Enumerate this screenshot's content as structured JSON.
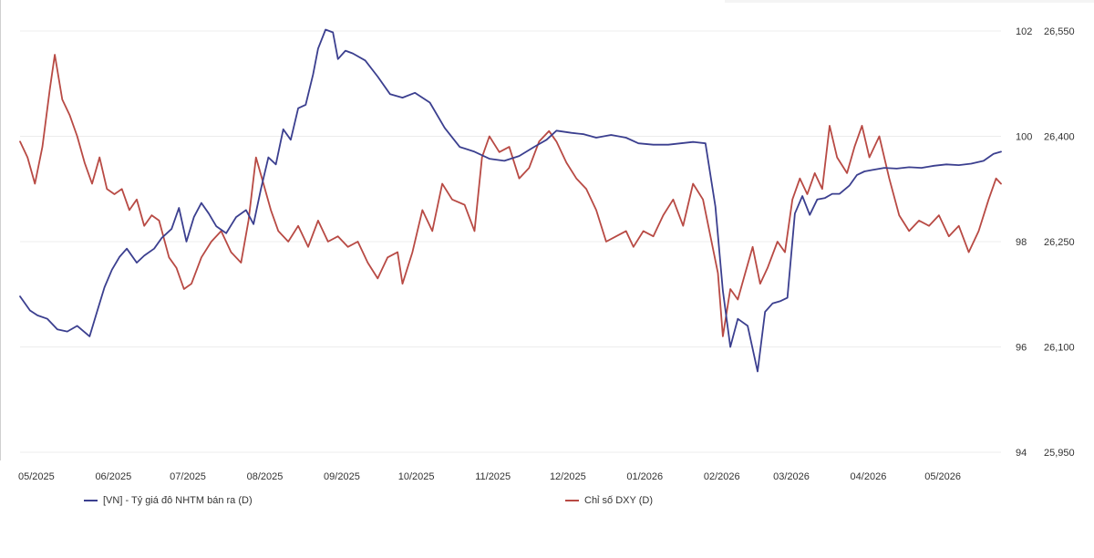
{
  "chart_data": {
    "type": "line",
    "x_labels": [
      "05/2025",
      "06/2025",
      "07/2025",
      "08/2025",
      "09/2025",
      "10/2025",
      "11/2025",
      "12/2025",
      "01/2026",
      "02/2026",
      "03/2026",
      "04/2026",
      "05/2026"
    ],
    "series": [
      {
        "name": "[VN] - Tỷ giá đô NHTM bán ra (D)",
        "axis": "right",
        "color": "#3b3f8f",
        "points": [
          [
            "2025-05-01",
            26172
          ],
          [
            "2025-05-05",
            26152
          ],
          [
            "2025-05-08",
            26145
          ],
          [
            "2025-05-12",
            26140
          ],
          [
            "2025-05-16",
            26125
          ],
          [
            "2025-05-20",
            26122
          ],
          [
            "2025-05-24",
            26130
          ],
          [
            "2025-05-29",
            26115
          ],
          [
            "2025-06-01",
            26150
          ],
          [
            "2025-06-04",
            26185
          ],
          [
            "2025-06-07",
            26210
          ],
          [
            "2025-06-10",
            26228
          ],
          [
            "2025-06-13",
            26240
          ],
          [
            "2025-06-17",
            26220
          ],
          [
            "2025-06-20",
            26230
          ],
          [
            "2025-06-24",
            26240
          ],
          [
            "2025-06-27",
            26255
          ],
          [
            "2025-07-01",
            26268
          ],
          [
            "2025-07-04",
            26298
          ],
          [
            "2025-07-07",
            26250
          ],
          [
            "2025-07-10",
            26285
          ],
          [
            "2025-07-13",
            26305
          ],
          [
            "2025-07-16",
            26290
          ],
          [
            "2025-07-19",
            26272
          ],
          [
            "2025-07-23",
            26262
          ],
          [
            "2025-07-27",
            26285
          ],
          [
            "2025-07-31",
            26295
          ],
          [
            "2025-08-03",
            26275
          ],
          [
            "2025-08-06",
            26325
          ],
          [
            "2025-08-09",
            26370
          ],
          [
            "2025-08-12",
            26360
          ],
          [
            "2025-08-15",
            26410
          ],
          [
            "2025-08-18",
            26395
          ],
          [
            "2025-08-21",
            26440
          ],
          [
            "2025-08-24",
            26445
          ],
          [
            "2025-08-27",
            26488
          ],
          [
            "2025-08-29",
            26525
          ],
          [
            "2025-09-01",
            26552
          ],
          [
            "2025-09-04",
            26548
          ],
          [
            "2025-09-06",
            26510
          ],
          [
            "2025-09-09",
            26522
          ],
          [
            "2025-09-12",
            26518
          ],
          [
            "2025-09-17",
            26508
          ],
          [
            "2025-09-22",
            26485
          ],
          [
            "2025-09-27",
            26460
          ],
          [
            "2025-10-02",
            26455
          ],
          [
            "2025-10-07",
            26462
          ],
          [
            "2025-10-13",
            26448
          ],
          [
            "2025-10-19",
            26412
          ],
          [
            "2025-10-25",
            26385
          ],
          [
            "2025-10-31",
            26378
          ],
          [
            "2025-11-06",
            26368
          ],
          [
            "2025-11-12",
            26365
          ],
          [
            "2025-11-18",
            26372
          ],
          [
            "2025-11-24",
            26385
          ],
          [
            "2025-11-29",
            26395
          ],
          [
            "2025-12-03",
            26408
          ],
          [
            "2025-12-09",
            26405
          ],
          [
            "2025-12-14",
            26403
          ],
          [
            "2025-12-19",
            26398
          ],
          [
            "2025-12-25",
            26402
          ],
          [
            "2025-12-31",
            26398
          ],
          [
            "2026-01-05",
            26390
          ],
          [
            "2026-01-11",
            26388
          ],
          [
            "2026-01-17",
            26388
          ],
          [
            "2026-01-22",
            26390
          ],
          [
            "2026-01-27",
            26392
          ],
          [
            "2026-02-01",
            26390
          ],
          [
            "2026-02-05",
            26300
          ],
          [
            "2026-02-08",
            26180
          ],
          [
            "2026-02-11",
            26100
          ],
          [
            "2026-02-14",
            26140
          ],
          [
            "2026-02-18",
            26130
          ],
          [
            "2026-02-22",
            26065
          ],
          [
            "2026-02-25",
            26150
          ],
          [
            "2026-02-28",
            26162
          ],
          [
            "2026-03-03",
            26165
          ],
          [
            "2026-03-06",
            26170
          ],
          [
            "2026-03-09",
            26290
          ],
          [
            "2026-03-12",
            26315
          ],
          [
            "2026-03-15",
            26288
          ],
          [
            "2026-03-18",
            26310
          ],
          [
            "2026-03-21",
            26312
          ],
          [
            "2026-03-24",
            26318
          ],
          [
            "2026-03-27",
            26318
          ],
          [
            "2026-03-31",
            26330
          ],
          [
            "2026-04-03",
            26345
          ],
          [
            "2026-04-06",
            26350
          ],
          [
            "2026-04-09",
            26352
          ],
          [
            "2026-04-14",
            26355
          ],
          [
            "2026-04-19",
            26354
          ],
          [
            "2026-04-24",
            26356
          ],
          [
            "2026-04-29",
            26355
          ],
          [
            "2026-05-04",
            26358
          ],
          [
            "2026-05-09",
            26360
          ],
          [
            "2026-05-14",
            26359
          ],
          [
            "2026-05-19",
            26361
          ],
          [
            "2026-05-24",
            26365
          ],
          [
            "2026-05-28",
            26375
          ],
          [
            "2026-05-31",
            26378
          ]
        ]
      },
      {
        "name": "Chỉ số DXY (D)",
        "axis": "left",
        "color": "#b84a44",
        "points": [
          [
            "2025-05-01",
            99.9
          ],
          [
            "2025-05-04",
            99.6
          ],
          [
            "2025-05-07",
            99.1
          ],
          [
            "2025-05-10",
            99.8
          ],
          [
            "2025-05-13",
            100.9
          ],
          [
            "2025-05-15",
            101.55
          ],
          [
            "2025-05-18",
            100.7
          ],
          [
            "2025-05-21",
            100.4
          ],
          [
            "2025-05-24",
            100.0
          ],
          [
            "2025-05-27",
            99.5
          ],
          [
            "2025-05-30",
            99.1
          ],
          [
            "2025-06-02",
            99.6
          ],
          [
            "2025-06-05",
            99.0
          ],
          [
            "2025-06-08",
            98.9
          ],
          [
            "2025-06-11",
            99.0
          ],
          [
            "2025-06-14",
            98.6
          ],
          [
            "2025-06-17",
            98.8
          ],
          [
            "2025-06-20",
            98.3
          ],
          [
            "2025-06-23",
            98.5
          ],
          [
            "2025-06-26",
            98.4
          ],
          [
            "2025-06-30",
            97.7
          ],
          [
            "2025-07-03",
            97.5
          ],
          [
            "2025-07-06",
            97.1
          ],
          [
            "2025-07-09",
            97.2
          ],
          [
            "2025-07-13",
            97.7
          ],
          [
            "2025-07-17",
            98.0
          ],
          [
            "2025-07-21",
            98.2
          ],
          [
            "2025-07-25",
            97.8
          ],
          [
            "2025-07-29",
            97.6
          ],
          [
            "2025-08-01",
            98.4
          ],
          [
            "2025-08-04",
            99.6
          ],
          [
            "2025-08-07",
            99.1
          ],
          [
            "2025-08-10",
            98.6
          ],
          [
            "2025-08-13",
            98.2
          ],
          [
            "2025-08-17",
            98.0
          ],
          [
            "2025-08-21",
            98.3
          ],
          [
            "2025-08-25",
            97.9
          ],
          [
            "2025-08-29",
            98.4
          ],
          [
            "2025-09-02",
            98.0
          ],
          [
            "2025-09-06",
            98.1
          ],
          [
            "2025-09-10",
            97.9
          ],
          [
            "2025-09-14",
            98.0
          ],
          [
            "2025-09-18",
            97.6
          ],
          [
            "2025-09-22",
            97.3
          ],
          [
            "2025-09-26",
            97.7
          ],
          [
            "2025-09-30",
            97.8
          ],
          [
            "2025-10-02",
            97.2
          ],
          [
            "2025-10-06",
            97.8
          ],
          [
            "2025-10-10",
            98.6
          ],
          [
            "2025-10-14",
            98.2
          ],
          [
            "2025-10-18",
            99.1
          ],
          [
            "2025-10-22",
            98.8
          ],
          [
            "2025-10-27",
            98.7
          ],
          [
            "2025-10-31",
            98.2
          ],
          [
            "2025-11-03",
            99.6
          ],
          [
            "2025-11-06",
            100.0
          ],
          [
            "2025-11-10",
            99.7
          ],
          [
            "2025-11-14",
            99.8
          ],
          [
            "2025-11-18",
            99.2
          ],
          [
            "2025-11-22",
            99.4
          ],
          [
            "2025-11-26",
            99.9
          ],
          [
            "2025-11-30",
            100.1
          ],
          [
            "2025-12-03",
            99.9
          ],
          [
            "2025-12-07",
            99.5
          ],
          [
            "2025-12-11",
            99.2
          ],
          [
            "2025-12-15",
            99.0
          ],
          [
            "2025-12-19",
            98.6
          ],
          [
            "2025-12-23",
            98.0
          ],
          [
            "2025-12-27",
            98.1
          ],
          [
            "2025-12-31",
            98.2
          ],
          [
            "2026-01-03",
            97.9
          ],
          [
            "2026-01-07",
            98.2
          ],
          [
            "2026-01-11",
            98.1
          ],
          [
            "2026-01-15",
            98.5
          ],
          [
            "2026-01-19",
            98.8
          ],
          [
            "2026-01-23",
            98.3
          ],
          [
            "2026-01-27",
            99.1
          ],
          [
            "2026-01-31",
            98.8
          ],
          [
            "2026-02-03",
            98.1
          ],
          [
            "2026-02-06",
            97.4
          ],
          [
            "2026-02-08",
            96.2
          ],
          [
            "2026-02-11",
            97.1
          ],
          [
            "2026-02-14",
            96.9
          ],
          [
            "2026-02-17",
            97.4
          ],
          [
            "2026-02-20",
            97.9
          ],
          [
            "2026-02-23",
            97.2
          ],
          [
            "2026-02-26",
            97.5
          ],
          [
            "2026-03-02",
            98.0
          ],
          [
            "2026-03-05",
            97.8
          ],
          [
            "2026-03-08",
            98.8
          ],
          [
            "2026-03-11",
            99.2
          ],
          [
            "2026-03-14",
            98.9
          ],
          [
            "2026-03-17",
            99.3
          ],
          [
            "2026-03-20",
            99.0
          ],
          [
            "2026-03-23",
            100.2
          ],
          [
            "2026-03-26",
            99.6
          ],
          [
            "2026-03-30",
            99.3
          ],
          [
            "2026-04-02",
            99.8
          ],
          [
            "2026-04-05",
            100.2
          ],
          [
            "2026-04-08",
            99.6
          ],
          [
            "2026-04-12",
            100.0
          ],
          [
            "2026-04-16",
            99.2
          ],
          [
            "2026-04-20",
            98.5
          ],
          [
            "2026-04-24",
            98.2
          ],
          [
            "2026-04-28",
            98.4
          ],
          [
            "2026-05-02",
            98.3
          ],
          [
            "2026-05-06",
            98.5
          ],
          [
            "2026-05-10",
            98.1
          ],
          [
            "2026-05-14",
            98.3
          ],
          [
            "2026-05-18",
            97.8
          ],
          [
            "2026-05-22",
            98.2
          ],
          [
            "2026-05-26",
            98.8
          ],
          [
            "2026-05-29",
            99.2
          ],
          [
            "2026-05-31",
            99.1
          ]
        ]
      }
    ],
    "x_range": [
      "2025-05-01",
      "2026-05-31"
    ],
    "y_left": {
      "min": 94,
      "max": 102,
      "ticks": [
        102,
        100,
        98,
        96,
        94
      ]
    },
    "y_right": {
      "min": 25950,
      "max": 26550,
      "ticks": [
        26550,
        26400,
        26250,
        26100,
        25950
      ],
      "tick_labels": [
        "26,550",
        "26,400",
        "26,250",
        "26,100",
        "25,950"
      ]
    },
    "grid": "horizontal",
    "legend_position": "bottom"
  }
}
